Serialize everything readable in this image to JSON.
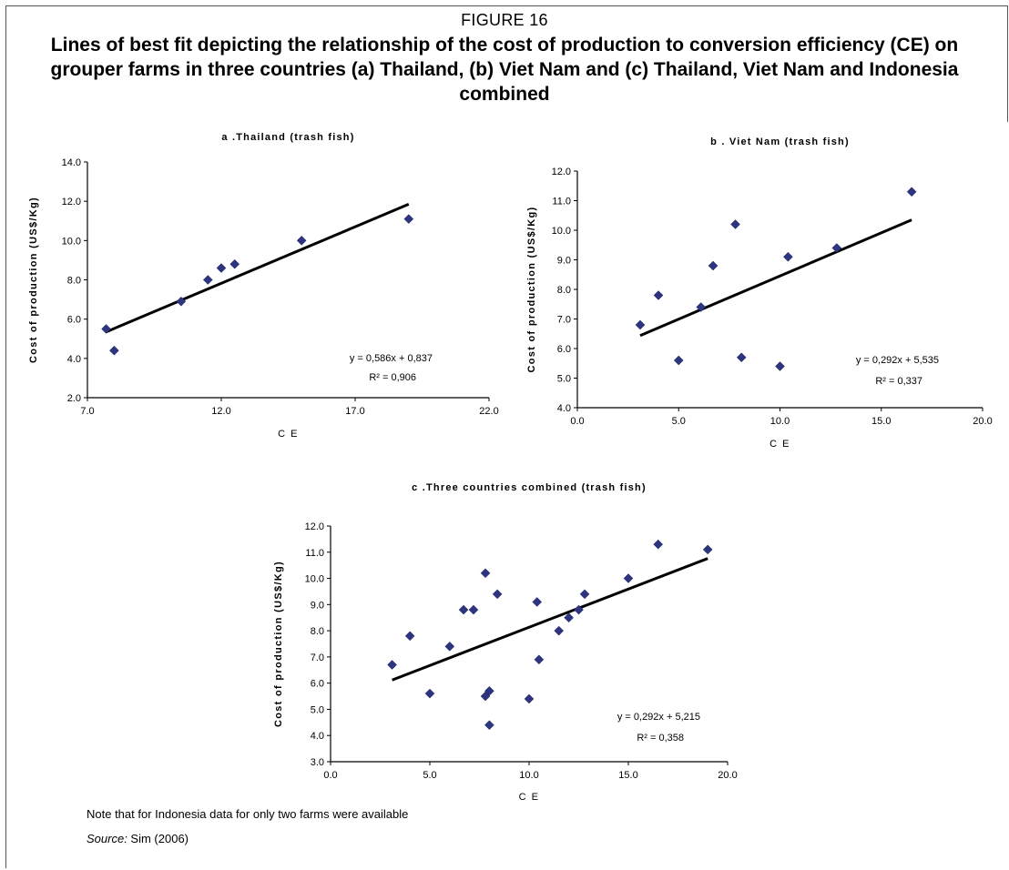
{
  "figure": {
    "label": "FIGURE 16",
    "title": "Lines of best fit depicting the relationship of the cost of production to conversion efficiency (CE) on grouper farms in three countries (a) Thailand, (b) Viet Nam and (c) Thailand, Viet Nam and Indonesia combined"
  },
  "note": "Note that for Indonesia data for only two farms were available",
  "source": {
    "label": "Source:",
    "text": " Sim (2006)"
  },
  "colors": {
    "marker": "#2e3580",
    "line": "#000000",
    "axis": "#000000"
  },
  "chart_data": [
    {
      "type": "scatter",
      "title": "a .Thailand (trash fish)",
      "xlabel": "C E",
      "ylabel": "Cost of production (US$/Kg)",
      "xlim": [
        7.0,
        22.0
      ],
      "ylim": [
        2.0,
        14.0
      ],
      "xticks": [
        7.0,
        12.0,
        17.0,
        22.0
      ],
      "yticks": [
        2.0,
        4.0,
        6.0,
        8.0,
        10.0,
        12.0,
        14.0
      ],
      "points": [
        [
          7.7,
          5.5
        ],
        [
          8.0,
          4.4
        ],
        [
          10.5,
          6.9
        ],
        [
          11.5,
          8.0
        ],
        [
          12.0,
          8.6
        ],
        [
          12.5,
          8.8
        ],
        [
          15.0,
          10.0
        ],
        [
          19.0,
          11.1
        ]
      ],
      "trendline": {
        "x": [
          7.7,
          19.0
        ],
        "y": [
          5.35,
          11.85
        ]
      },
      "equation": "y = 0,586x + 0,837",
      "r2_label": "R² = 0,906"
    },
    {
      "type": "scatter",
      "title": "b . Viet Nam (trash fish)",
      "xlabel": "C E",
      "ylabel": "Cost of production (US$/Kg)",
      "xlim": [
        0.0,
        20.0
      ],
      "ylim": [
        4.0,
        12.0
      ],
      "xticks": [
        0.0,
        5.0,
        10.0,
        15.0,
        20.0
      ],
      "yticks": [
        4.0,
        5.0,
        6.0,
        7.0,
        8.0,
        9.0,
        10.0,
        11.0,
        12.0
      ],
      "points": [
        [
          3.1,
          6.8
        ],
        [
          4.0,
          7.8
        ],
        [
          5.0,
          5.6
        ],
        [
          6.1,
          7.4
        ],
        [
          6.7,
          8.8
        ],
        [
          7.8,
          10.2
        ],
        [
          8.1,
          5.7
        ],
        [
          10.0,
          5.4
        ],
        [
          10.4,
          9.1
        ],
        [
          12.8,
          9.4
        ],
        [
          16.5,
          11.3
        ]
      ],
      "trendline": {
        "x": [
          3.1,
          16.5
        ],
        "y": [
          6.44,
          10.35
        ]
      },
      "equation": "y = 0,292x + 5,535",
      "r2_label": "R² = 0,337"
    },
    {
      "type": "scatter",
      "title": "c .Three countries combined (trash fish)",
      "xlabel": "C E",
      "ylabel": "Cost of production (US$/Kg)",
      "xlim": [
        0.0,
        20.0
      ],
      "ylim": [
        3.0,
        12.0
      ],
      "xticks": [
        0.0,
        5.0,
        10.0,
        15.0,
        20.0
      ],
      "yticks": [
        3.0,
        4.0,
        5.0,
        6.0,
        7.0,
        8.0,
        9.0,
        10.0,
        11.0,
        12.0
      ],
      "points": [
        [
          3.1,
          6.7
        ],
        [
          4.0,
          7.8
        ],
        [
          5.0,
          5.6
        ],
        [
          6.0,
          7.4
        ],
        [
          6.7,
          8.8
        ],
        [
          7.2,
          8.8
        ],
        [
          7.8,
          10.2
        ],
        [
          7.8,
          5.5
        ],
        [
          8.0,
          5.7
        ],
        [
          8.0,
          4.4
        ],
        [
          8.4,
          9.4
        ],
        [
          10.0,
          5.4
        ],
        [
          10.4,
          9.1
        ],
        [
          10.5,
          6.9
        ],
        [
          11.5,
          8.0
        ],
        [
          12.0,
          8.5
        ],
        [
          12.5,
          8.8
        ],
        [
          12.8,
          9.4
        ],
        [
          15.0,
          10.0
        ],
        [
          16.5,
          11.3
        ],
        [
          19.0,
          11.1
        ]
      ],
      "trendline": {
        "x": [
          3.1,
          19.0
        ],
        "y": [
          6.12,
          10.76
        ]
      },
      "equation": "y = 0,292x + 5,215",
      "r2_label": "R² = 0,358"
    }
  ]
}
